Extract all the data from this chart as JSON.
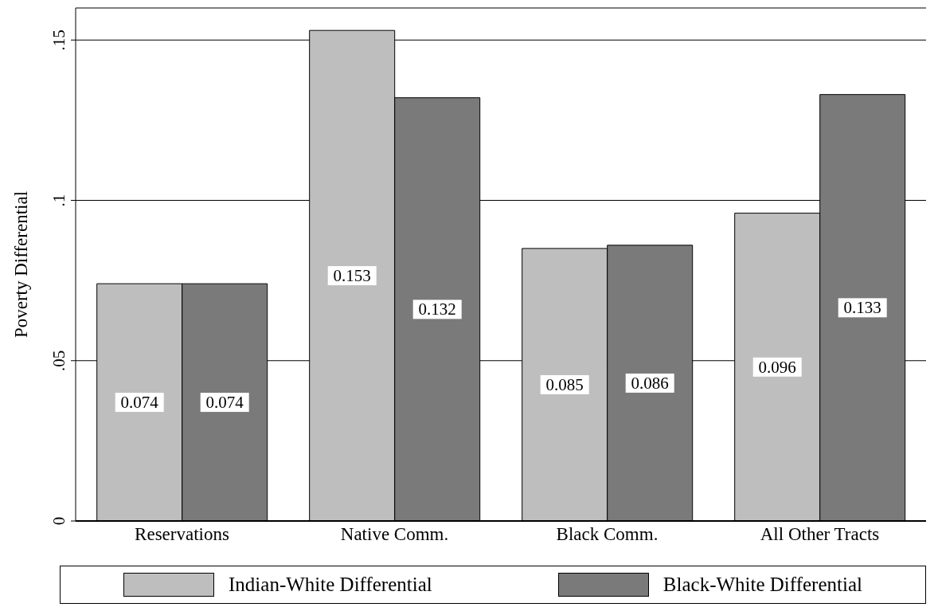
{
  "chart_data": {
    "type": "bar",
    "ylabel": "Poverty Differential",
    "categories": [
      "Reservations",
      "Native Comm.",
      "Black Comm.",
      "All Other Tracts"
    ],
    "series": [
      {
        "name": "Indian-White Differential",
        "color": "#bebebe",
        "values": [
          0.074,
          0.153,
          0.085,
          0.096
        ]
      },
      {
        "name": "Black-White Differential",
        "color": "#7a7a7a",
        "values": [
          0.074,
          0.132,
          0.086,
          0.133
        ]
      }
    ],
    "ylim": [
      0,
      0.16
    ],
    "yticks": [
      {
        "value": 0,
        "label": "0"
      },
      {
        "value": 0.05,
        "label": ".05"
      },
      {
        "value": 0.1,
        "label": ".1"
      },
      {
        "value": 0.15,
        "label": ".15"
      }
    ],
    "grid": "y",
    "legend": "bottom",
    "data_labels": true
  }
}
